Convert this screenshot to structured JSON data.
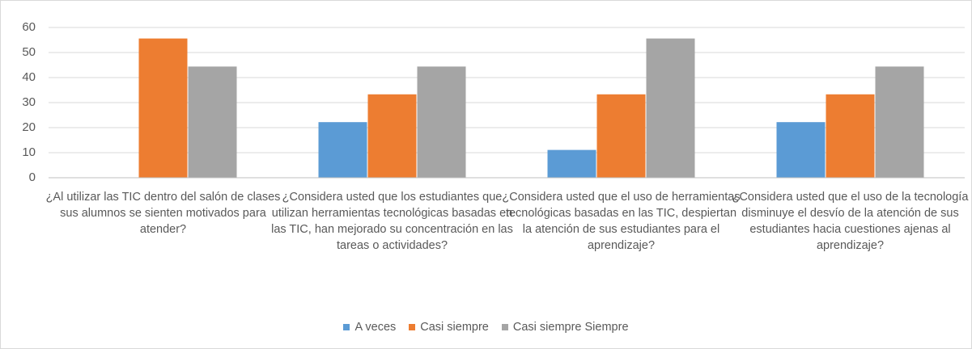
{
  "chart_data": {
    "type": "bar",
    "categories": [
      "¿Al utilizar las TIC dentro del salón de clases sus alumnos se sienten motivados para atender?",
      "¿Considera usted que los estudiantes que utilizan herramientas tecnológicas basadas en las TIC, han mejorado su concentración en las tareas o actividades?",
      "¿Considera usted que el uso de herramientas tecnológicas basadas en las TIC, despiertan la atención de sus estudiantes para el aprendizaje?",
      "¿Considera usted que el uso de la tecnología disminuye el desvío de la atención de sus estudiantes hacia cuestiones ajenas al aprendizaje?"
    ],
    "series": [
      {
        "name": "A veces",
        "color": "#5b9bd5",
        "values": [
          0,
          22.2,
          11.1,
          22.2
        ]
      },
      {
        "name": "Casi siempre",
        "color": "#ed7d31",
        "values": [
          55.6,
          33.3,
          33.3,
          33.3
        ]
      },
      {
        "name": "Casi siempre Siempre",
        "color": "#a5a5a5",
        "values": [
          44.4,
          44.4,
          55.6,
          44.4
        ]
      }
    ],
    "ylim": [
      0,
      60
    ],
    "yticks": [
      0,
      10,
      20,
      30,
      40,
      50,
      60
    ],
    "grid": true
  }
}
